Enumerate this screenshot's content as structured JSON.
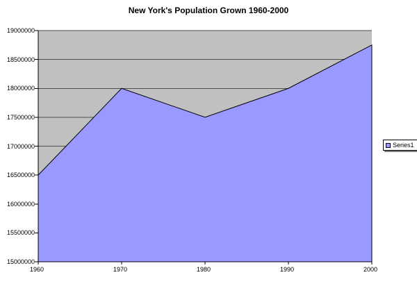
{
  "chart_data": {
    "type": "area",
    "title": "New York's Population Grown 1960-2000",
    "categories": [
      "1960",
      "1970",
      "1980",
      "1990",
      "2000"
    ],
    "series": [
      {
        "name": "Series1",
        "values": [
          16500000,
          18000000,
          17500000,
          18000000,
          18750000
        ]
      }
    ],
    "xlabel": "",
    "ylabel": "",
    "ylim": [
      15000000,
      19000000
    ],
    "ytick_step": 500000,
    "ytick_labels_top_to_bottom": [
      "19000000",
      "18500000",
      "18000000",
      "17500000",
      "17000000",
      "16500000",
      "16000000",
      "15500000",
      "15000000"
    ],
    "grid": true,
    "legend": {
      "position": "right",
      "entries": [
        "Series1"
      ]
    },
    "colors": {
      "area_fill": "#9999FF",
      "area_border": "#000000",
      "plot_bg": "#C0C0C0",
      "gridline": "#4D4D4D",
      "axis": "#000000",
      "text": "#000000",
      "background": "#FFFFFF",
      "legend_bg": "#FFFFFF",
      "legend_border": "#000000",
      "legend_shadow": "#808080"
    }
  }
}
